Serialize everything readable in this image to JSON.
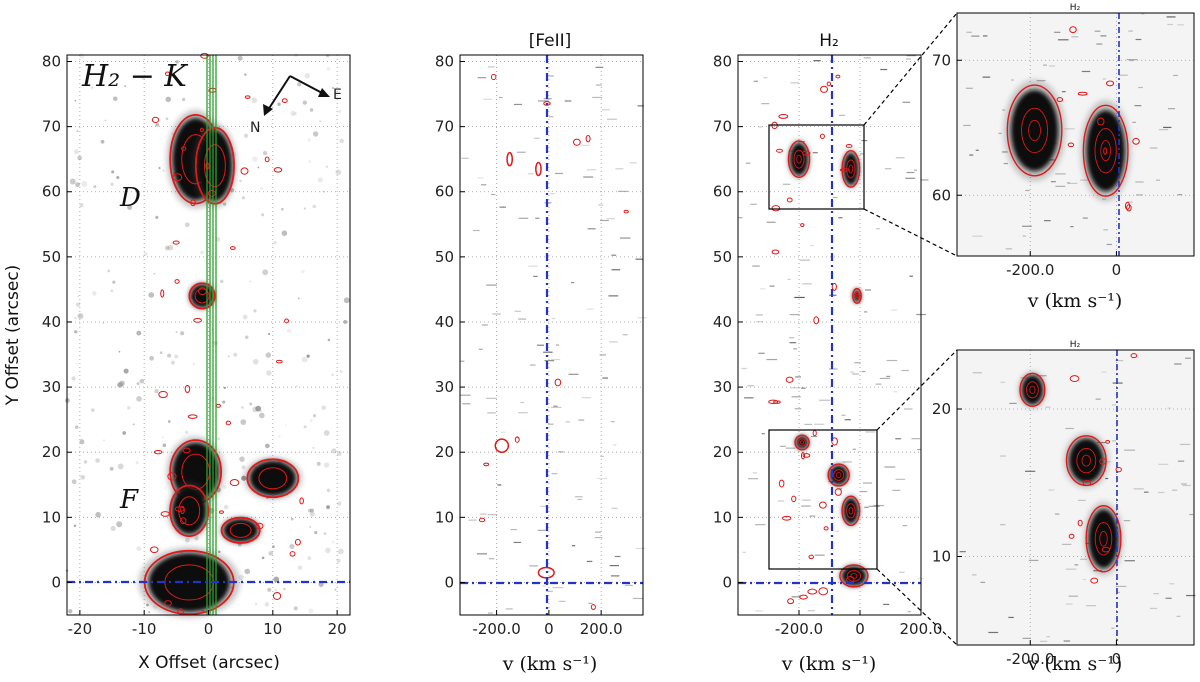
{
  "chart_data": [
    {
      "id": "image",
      "type": "image",
      "ylabel": "Y Offset (arcsec)",
      "xlabel": "X Offset (arcsec)",
      "xlim": [
        -22,
        22
      ],
      "ylim": [
        -5,
        81
      ],
      "xticks": [
        "-20",
        "-10",
        "0",
        "10",
        "20"
      ],
      "yticks": [
        "0",
        "10",
        "20",
        "30",
        "40",
        "50",
        "60",
        "70",
        "80"
      ],
      "panel_label": "H₂ − K",
      "knot_labels": [
        "D",
        "F"
      ],
      "compass": [
        "N",
        "E"
      ],
      "slit_x": 0,
      "reference_y": 0,
      "knots": [
        {
          "x": -2,
          "y": 65,
          "size": 7,
          "w": 4
        },
        {
          "x": 1,
          "y": 64,
          "size": 6,
          "w": 3
        },
        {
          "x": -1,
          "y": 44,
          "size": 2,
          "w": 2
        },
        {
          "x": -2,
          "y": 17,
          "size": 5,
          "w": 4
        },
        {
          "x": -3,
          "y": 11,
          "size": 4,
          "w": 3
        },
        {
          "x": 10,
          "y": 16,
          "size": 3,
          "w": 4
        },
        {
          "x": 5,
          "y": 8,
          "size": 2,
          "w": 3
        },
        {
          "x": -3,
          "y": 0,
          "size": 5,
          "w": 7
        }
      ]
    },
    {
      "id": "pv_feii",
      "type": "pv",
      "title": "[FeII]",
      "xlabel": "v (km s⁻¹)",
      "xlim": [
        -340,
        360
      ],
      "ylim": [
        -5,
        81
      ],
      "xticks": [
        "-200.0",
        "0",
        "200.0"
      ],
      "yticks": [
        "0",
        "10",
        "20",
        "30",
        "40",
        "50",
        "60",
        "70",
        "80"
      ],
      "blobs": [
        {
          "v": -180,
          "y": 21,
          "dv": 25,
          "dy": 1
        },
        {
          "v": -40,
          "y": 63.5,
          "dv": 10,
          "dy": 1
        },
        {
          "v": -150,
          "y": 65,
          "dv": 10,
          "dy": 1
        },
        {
          "v": -10,
          "y": 1.5,
          "dv": 30,
          "dy": 0.8
        }
      ]
    },
    {
      "id": "pv_h2",
      "type": "pv",
      "title": "H₂",
      "xlabel": "v (km s⁻¹)",
      "xlim": [
        -400,
        200
      ],
      "ylim": [
        -5,
        81
      ],
      "xticks": [
        "-200.0",
        "0",
        "200.0"
      ],
      "yticks": [
        "0",
        "10",
        "20",
        "30",
        "40",
        "50",
        "60",
        "70",
        "80"
      ],
      "knots": [
        {
          "v": -200,
          "y": 65,
          "dv": 30,
          "dy": 2.5
        },
        {
          "v": -30,
          "y": 63.5,
          "dv": 25,
          "dy": 2.5
        },
        {
          "v": -10,
          "y": 44,
          "dv": 12,
          "dy": 1
        },
        {
          "v": -190,
          "y": 21.5,
          "dv": 20,
          "dy": 1
        },
        {
          "v": -70,
          "y": 16.5,
          "dv": 30,
          "dy": 1.5
        },
        {
          "v": -30,
          "y": 11,
          "dv": 25,
          "dy": 2
        },
        {
          "v": -20,
          "y": 1,
          "dv": 40,
          "dy": 1.5
        }
      ]
    },
    {
      "id": "zoom_top",
      "type": "pv",
      "title": "H₂",
      "xlabel": "v (km s⁻¹)",
      "xlim": [
        -370,
        180
      ],
      "ylim": [
        55.5,
        73.5
      ],
      "xticks": [
        "-200.0",
        "0"
      ],
      "yticks": [
        "60",
        "70"
      ],
      "knots": [
        {
          "v": -190,
          "y": 64.8,
          "dv": 55,
          "dy": 3
        },
        {
          "v": -25,
          "y": 63.3,
          "dv": 45,
          "dy": 3
        }
      ]
    },
    {
      "id": "zoom_bottom",
      "type": "pv",
      "title": "H₂",
      "xlabel": "v (km s⁻¹)",
      "xlim": [
        -370,
        180
      ],
      "ylim": [
        4,
        24
      ],
      "xticks": [
        "-200.0",
        "0"
      ],
      "yticks": [
        "10",
        "20"
      ],
      "knots": [
        {
          "v": -195,
          "y": 21.3,
          "dv": 25,
          "dy": 1
        },
        {
          "v": -70,
          "y": 16.5,
          "dv": 40,
          "dy": 1.5
        },
        {
          "v": -30,
          "y": 11.2,
          "dv": 35,
          "dy": 2
        }
      ]
    }
  ]
}
